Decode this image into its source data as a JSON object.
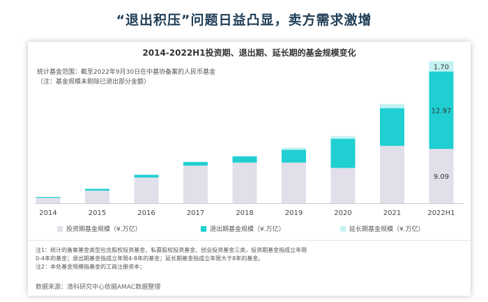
{
  "headline": "“退出积压”问题日益凸显，卖方需求激增",
  "chart_data": {
    "type": "bar",
    "stacked": true,
    "title": "2014-2022H1投资期、退出期、延长期的基金规模变化",
    "categories": [
      "2014",
      "2015",
      "2016",
      "2017",
      "2018",
      "2019",
      "2020",
      "2021",
      "2022H1"
    ],
    "series": [
      {
        "name": "投资期基金规模（¥.万亿）",
        "color": "#e1dfea",
        "values": [
          0.9,
          2.1,
          4.3,
          6.3,
          6.8,
          6.8,
          5.9,
          9.6,
          9.09
        ]
      },
      {
        "name": "退出期基金规模（¥.万亿）",
        "color": "#1fcfd2",
        "values": [
          0.15,
          0.3,
          0.45,
          0.6,
          1.05,
          2.15,
          4.9,
          6.3,
          12.97
        ]
      },
      {
        "name": "延长期基金规模（¥.万亿）",
        "color": "#c4f2f3",
        "values": [
          0.0,
          0.0,
          0.0,
          0.0,
          0.0,
          0.35,
          0.45,
          0.7,
          1.7
        ]
      }
    ],
    "data_labels": [
      {
        "category": "2022H1",
        "series": 0,
        "text": "9.09"
      },
      {
        "category": "2022H1",
        "series": 1,
        "text": "12.97"
      },
      {
        "category": "2022H1",
        "series": 2,
        "text": "1.70"
      }
    ],
    "ylim": [
      0,
      24
    ],
    "xlabel": "",
    "ylabel": "",
    "grid": false
  },
  "scope_notes": [
    "统计基金范围：截至2022年9月30日在中基协备案的人民币基金",
    "（注：基金规模未剔除已退出部分金额）"
  ],
  "notes": [
    "注1：统计的备案基金类型包含股权投资基金、私募股权投资基金、创业投资基金三类，投资期基金指成立年限",
    "0-4年的基金；退出期基金指成立年限4-8年的基金；延长期基金指成立年限大于8年的基金。",
    "注2：本处基金规模指基金的工商注册资本；"
  ],
  "source": "数据来源：清科研究中心依据AMAC数据整理"
}
